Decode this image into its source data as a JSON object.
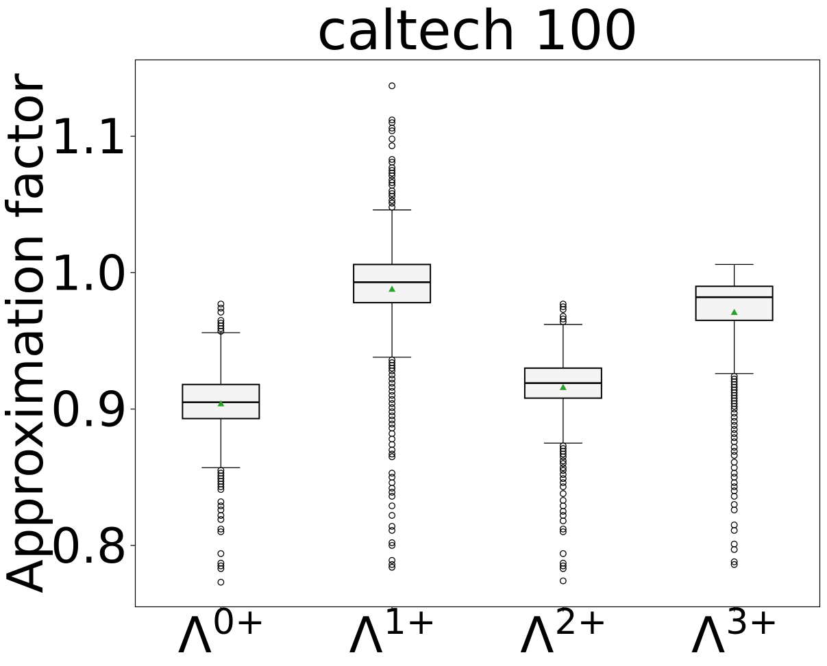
{
  "chart_data": {
    "type": "box",
    "title": "caltech 100",
    "xlabel": "",
    "ylabel": "Approximation factor",
    "ylim": [
      0.755,
      1.156
    ],
    "yticks": [
      0.8,
      0.9,
      1.0,
      1.1
    ],
    "ytick_labels": [
      "0.8",
      "0.9",
      "1.0",
      "1.1"
    ],
    "grid": false,
    "colors": {
      "box_fill": "#f4f4f4",
      "mean_marker": "#2ca02c",
      "stroke": "#000000"
    },
    "categories": [
      {
        "base": "Λ",
        "sup": "0+",
        "label": "Λ^{0+}"
      },
      {
        "base": "Λ",
        "sup": "1+",
        "label": "Λ^{1+}"
      },
      {
        "base": "Λ",
        "sup": "2+",
        "label": "Λ^{2+}"
      },
      {
        "base": "Λ",
        "sup": "3+",
        "label": "Λ^{3+}"
      }
    ],
    "boxes": [
      {
        "whisker_low": 0.857,
        "q1": 0.893,
        "median": 0.905,
        "q3": 0.918,
        "whisker_high": 0.956,
        "mean": 0.904,
        "outliers": [
          0.977,
          0.974,
          0.971,
          0.965,
          0.963,
          0.961,
          0.959,
          0.957,
          0.855,
          0.853,
          0.851,
          0.849,
          0.847,
          0.845,
          0.843,
          0.841,
          0.832,
          0.829,
          0.826,
          0.822,
          0.819,
          0.812,
          0.81,
          0.794,
          0.787,
          0.785,
          0.783,
          0.773
        ]
      },
      {
        "whisker_low": 0.938,
        "q1": 0.978,
        "median": 0.993,
        "q3": 1.006,
        "whisker_high": 1.046,
        "mean": 0.988,
        "outliers": [
          1.137,
          1.112,
          1.11,
          1.106,
          1.104,
          1.098,
          1.093,
          1.083,
          1.081,
          1.077,
          1.075,
          1.073,
          1.071,
          1.068,
          1.066,
          1.064,
          1.06,
          1.058,
          1.056,
          1.053,
          1.051,
          1.048,
          0.936,
          0.934,
          0.932,
          0.93,
          0.928,
          0.925,
          0.922,
          0.919,
          0.916,
          0.913,
          0.91,
          0.907,
          0.904,
          0.901,
          0.898,
          0.895,
          0.892,
          0.889,
          0.886,
          0.882,
          0.878,
          0.874,
          0.87,
          0.867,
          0.865,
          0.853,
          0.85,
          0.846,
          0.842,
          0.839,
          0.836,
          0.829,
          0.822,
          0.814,
          0.811,
          0.802,
          0.8,
          0.789,
          0.786,
          0.784
        ]
      },
      {
        "whisker_low": 0.875,
        "q1": 0.908,
        "median": 0.919,
        "q3": 0.93,
        "whisker_high": 0.962,
        "mean": 0.916,
        "outliers": [
          0.977,
          0.975,
          0.973,
          0.968,
          0.966,
          0.964,
          0.873,
          0.871,
          0.869,
          0.867,
          0.865,
          0.862,
          0.86,
          0.857,
          0.855,
          0.852,
          0.849,
          0.846,
          0.843,
          0.838,
          0.833,
          0.829,
          0.825,
          0.822,
          0.818,
          0.812,
          0.81,
          0.794,
          0.787,
          0.785,
          0.783,
          0.774
        ]
      },
      {
        "whisker_low": 0.926,
        "q1": 0.965,
        "median": 0.982,
        "q3": 0.99,
        "whisker_high": 1.006,
        "mean": 0.971,
        "outliers": [
          0.924,
          0.922,
          0.92,
          0.918,
          0.916,
          0.914,
          0.912,
          0.91,
          0.908,
          0.906,
          0.904,
          0.902,
          0.9,
          0.897,
          0.894,
          0.891,
          0.888,
          0.885,
          0.882,
          0.879,
          0.876,
          0.872,
          0.869,
          0.866,
          0.861,
          0.857,
          0.853,
          0.85,
          0.846,
          0.843,
          0.84,
          0.836,
          0.83,
          0.826,
          0.815,
          0.811,
          0.801,
          0.797,
          0.788,
          0.786
        ]
      }
    ]
  }
}
